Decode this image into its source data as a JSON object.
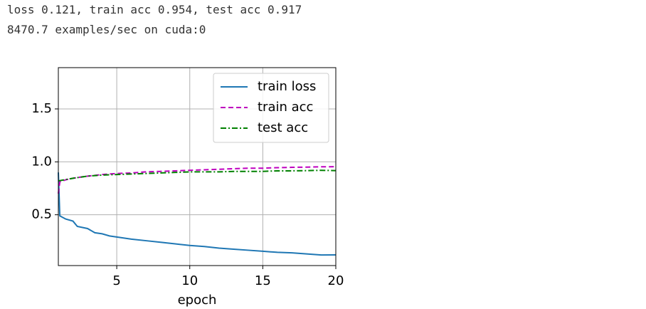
{
  "output_lines": [
    "loss 0.121, train acc 0.954, test acc 0.917",
    "8470.7 examples/sec on cuda:0"
  ],
  "chart_data": {
    "type": "line",
    "xlabel": "epoch",
    "xlim": [
      1,
      20
    ],
    "ylim": [
      0.02,
      1.89
    ],
    "xticks": [
      5,
      10,
      15,
      20
    ],
    "yticks": [
      0.5,
      {
        "value": 1,
        "label": "1.0"
      },
      1.5
    ],
    "grid": true,
    "legend": "upper right",
    "series": [
      {
        "name": "train loss",
        "color": "#1f77b4",
        "dash": "solid",
        "x": [
          1,
          1.1,
          1.5,
          2,
          2.3,
          3,
          3.5,
          4,
          4.5,
          5,
          6,
          7,
          8,
          9,
          10,
          11,
          12,
          13,
          14,
          15,
          16,
          17,
          18,
          19,
          20
        ],
        "values": [
          0.9,
          0.49,
          0.46,
          0.44,
          0.39,
          0.37,
          0.33,
          0.32,
          0.3,
          0.29,
          0.27,
          0.255,
          0.24,
          0.225,
          0.21,
          0.2,
          0.185,
          0.175,
          0.165,
          0.155,
          0.145,
          0.14,
          0.13,
          0.12,
          0.121
        ]
      },
      {
        "name": "train acc",
        "color": "#bf00bf",
        "dash": "dashed",
        "x": [
          1,
          1.1,
          1.5,
          2,
          3,
          4,
          5,
          6,
          7,
          8,
          9,
          10,
          11,
          12,
          13,
          14,
          15,
          16,
          17,
          18,
          19,
          20
        ],
        "values": [
          0.7,
          0.81,
          0.83,
          0.845,
          0.865,
          0.88,
          0.89,
          0.895,
          0.905,
          0.91,
          0.915,
          0.92,
          0.925,
          0.93,
          0.935,
          0.94,
          0.94,
          0.945,
          0.948,
          0.95,
          0.953,
          0.954
        ]
      },
      {
        "name": "test acc",
        "color": "#008000",
        "dash": "dashdot",
        "x": [
          1,
          2,
          3,
          4,
          5,
          6,
          7,
          8,
          9,
          10,
          11,
          12,
          13,
          14,
          15,
          16,
          17,
          18,
          19,
          20
        ],
        "values": [
          0.82,
          0.845,
          0.865,
          0.875,
          0.88,
          0.885,
          0.89,
          0.895,
          0.9,
          0.905,
          0.905,
          0.905,
          0.91,
          0.91,
          0.91,
          0.915,
          0.915,
          0.917,
          0.92,
          0.917
        ]
      }
    ]
  }
}
